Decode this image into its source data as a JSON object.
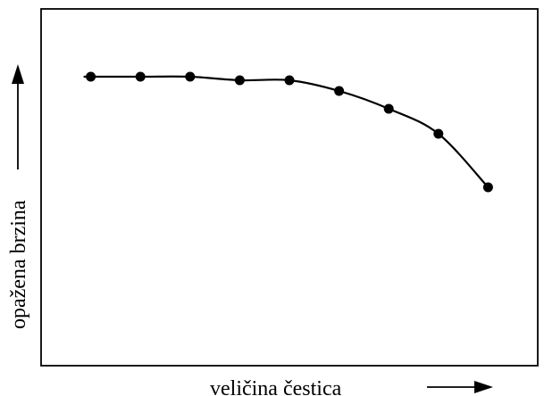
{
  "chart_data": {
    "type": "line",
    "title": "",
    "xlabel": "veličina čestica",
    "ylabel": "opažena brzina",
    "grid": false,
    "axis_ticks": false,
    "series": [
      {
        "points": [
          {
            "x": 1,
            "y": 0.81
          },
          {
            "x": 2,
            "y": 0.81
          },
          {
            "x": 3,
            "y": 0.81
          },
          {
            "x": 4,
            "y": 0.8
          },
          {
            "x": 5,
            "y": 0.8
          },
          {
            "x": 6,
            "y": 0.77
          },
          {
            "x": 7,
            "y": 0.72
          },
          {
            "x": 8,
            "y": 0.65
          },
          {
            "x": 9,
            "y": 0.5
          }
        ]
      }
    ],
    "xlim": [
      0,
      10
    ],
    "ylim": [
      0,
      1
    ],
    "colors": {
      "line": "#000000",
      "marker": "#000000",
      "frame": "#000000"
    }
  }
}
